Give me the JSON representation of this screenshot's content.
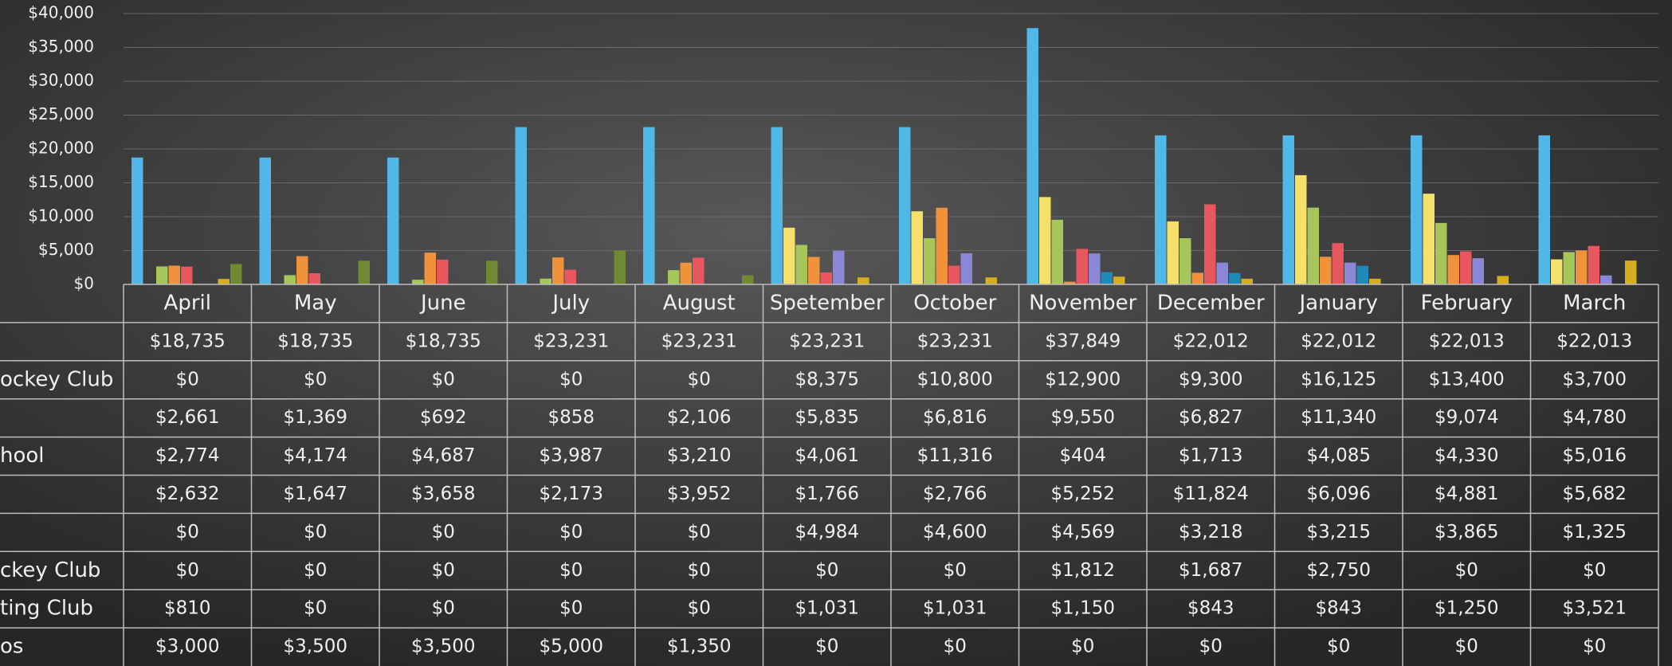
{
  "chart_data": {
    "type": "bar",
    "categories": [
      "April",
      "May",
      "June",
      "July",
      "August",
      "Spetember",
      "October",
      "November",
      "December",
      "January",
      "February",
      "March"
    ],
    "ylim": [
      0,
      40000
    ],
    "yticks": [
      {
        "value": 0,
        "label": "$0"
      },
      {
        "value": 5000,
        "label": "$5,000"
      },
      {
        "value": 10000,
        "label": "$10,000"
      },
      {
        "value": 15000,
        "label": "$15,000"
      },
      {
        "value": 20000,
        "label": "$20,000"
      },
      {
        "value": 25000,
        "label": "$25,000"
      },
      {
        "value": 30000,
        "label": "$30,000"
      },
      {
        "value": 35000,
        "label": "$35,000"
      },
      {
        "value": 40000,
        "label": "$40,000"
      }
    ],
    "grid": true,
    "series": [
      {
        "name": null,
        "color": "#4fb8e6",
        "values": [
          18735,
          18735,
          18735,
          23231,
          23231,
          23231,
          23231,
          37849,
          22012,
          22012,
          22013,
          22013
        ],
        "value_labels": [
          "$18,735",
          "$18,735",
          "$18,735",
          "$23,231",
          "$23,231",
          "$23,231",
          "$23,231",
          "$37,849",
          "$22,012",
          "$22,012",
          "$22,013",
          "$22,013"
        ]
      },
      {
        "name": "ockey Club",
        "color": "#f5e06a",
        "values": [
          0,
          0,
          0,
          0,
          0,
          8375,
          10800,
          12900,
          9300,
          16125,
          13400,
          3700
        ],
        "value_labels": [
          "$0",
          "$0",
          "$0",
          "$0",
          "$0",
          "$8,375",
          "$10,800",
          "$12,900",
          "$9,300",
          "$16,125",
          "$13,400",
          "$3,700"
        ]
      },
      {
        "name": null,
        "color": "#a6c65a",
        "values": [
          2661,
          1369,
          692,
          858,
          2106,
          5835,
          6816,
          9550,
          6827,
          11340,
          9074,
          4780
        ],
        "value_labels": [
          "$2,661",
          "$1,369",
          "$692",
          "$858",
          "$2,106",
          "$5,835",
          "$6,816",
          "$9,550",
          "$6,827",
          "$11,340",
          "$9,074",
          "$4,780"
        ]
      },
      {
        "name": "hool",
        "color": "#f0913c",
        "values": [
          2774,
          4174,
          4687,
          3987,
          3210,
          4061,
          11316,
          404,
          1713,
          4085,
          4330,
          5016
        ],
        "value_labels": [
          "$2,774",
          "$4,174",
          "$4,687",
          "$3,987",
          "$3,210",
          "$4,061",
          "$11,316",
          "$404",
          "$1,713",
          "$4,085",
          "$4,330",
          "$5,016"
        ]
      },
      {
        "name": null,
        "color": "#e8565e",
        "values": [
          2632,
          1647,
          3658,
          2173,
          3952,
          1766,
          2766,
          5252,
          11824,
          6096,
          4881,
          5682
        ],
        "value_labels": [
          "$2,632",
          "$1,647",
          "$3,658",
          "$2,173",
          "$3,952",
          "$1,766",
          "$2,766",
          "$5,252",
          "$11,824",
          "$6,096",
          "$4,881",
          "$5,682"
        ]
      },
      {
        "name": null,
        "color": "#8a88d6",
        "values": [
          0,
          0,
          0,
          0,
          0,
          4984,
          4600,
          4569,
          3218,
          3215,
          3865,
          1325
        ],
        "value_labels": [
          "$0",
          "$0",
          "$0",
          "$0",
          "$0",
          "$4,984",
          "$4,600",
          "$4,569",
          "$3,218",
          "$3,215",
          "$3,865",
          "$1,325"
        ]
      },
      {
        "name": "ckey Club",
        "color": "#1f8ab8",
        "values": [
          0,
          0,
          0,
          0,
          0,
          0,
          0,
          1812,
          1687,
          2750,
          0,
          0
        ],
        "value_labels": [
          "$0",
          "$0",
          "$0",
          "$0",
          "$0",
          "$0",
          "$0",
          "$1,812",
          "$1,687",
          "$2,750",
          "$0",
          "$0"
        ]
      },
      {
        "name": "ting Club",
        "color": "#d4ae1c",
        "values": [
          810,
          0,
          0,
          0,
          0,
          1031,
          1031,
          1150,
          843,
          843,
          1250,
          3521
        ],
        "value_labels": [
          "$810",
          "$0",
          "$0",
          "$0",
          "$0",
          "$1,031",
          "$1,031",
          "$1,150",
          "$843",
          "$843",
          "$1,250",
          "$3,521"
        ]
      },
      {
        "name": "os",
        "color": "#6f8a30",
        "values": [
          3000,
          3500,
          3500,
          5000,
          1350,
          0,
          0,
          0,
          0,
          0,
          0,
          0
        ],
        "value_labels": [
          "$3,000",
          "$3,500",
          "$3,500",
          "$5,000",
          "$1,350",
          "$0",
          "$0",
          "$0",
          "$0",
          "$0",
          "$0",
          "$0"
        ]
      }
    ]
  }
}
